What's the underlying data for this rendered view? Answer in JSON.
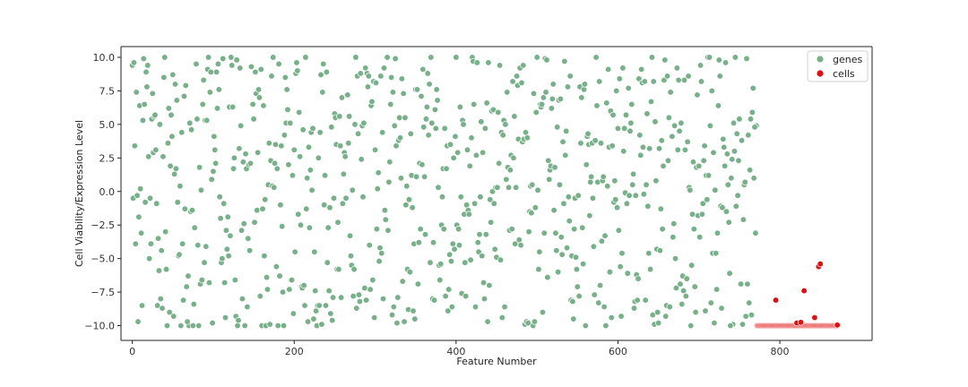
{
  "chart_data": {
    "type": "scatter",
    "title": "",
    "xlabel": "Feature Number",
    "ylabel": "Cell Viability/Expression Level",
    "xlim": [
      -14,
      914
    ],
    "ylim": [
      -11.1,
      10.8
    ],
    "xticks": [
      0,
      200,
      400,
      600,
      800
    ],
    "yticks": [
      -10.0,
      -7.5,
      -5.0,
      -2.5,
      0.0,
      2.5,
      5.0,
      7.5,
      10.0
    ],
    "xtick_labels": [
      "0",
      "200",
      "400",
      "600",
      "800"
    ],
    "ytick_labels": [
      "−10.0",
      "−7.5",
      "−5.0",
      "−2.5",
      "0.0",
      "2.5",
      "5.0",
      "7.5",
      "10.0"
    ],
    "grid": false,
    "legend_position": "top-right",
    "series": [
      {
        "name": "genes",
        "color": "#78b08a",
        "n_points": 772,
        "x_range": [
          0,
          771
        ],
        "y_range": [
          -10,
          10
        ],
        "distribution": "uniform",
        "seed": 12345,
        "points": [
          [
            0,
            9.4
          ],
          [
            1,
            -0.5
          ],
          [
            3,
            3.4
          ],
          [
            5,
            7.4
          ],
          [
            7,
            -9.7
          ],
          [
            8,
            -1.9
          ],
          [
            40,
            10.0
          ],
          [
            48,
            5.7
          ],
          [
            94,
            10.0
          ],
          [
            122,
            10.0
          ],
          [
            174,
            10.0
          ],
          [
            187,
            -10.0
          ],
          [
            214,
            10.0
          ],
          [
            276,
            10.0
          ],
          [
            369,
            10.0
          ],
          [
            420,
            10.0
          ],
          [
            500,
            10.0
          ],
          [
            573,
            10.0
          ],
          [
            642,
            10.0
          ],
          [
            711,
            10.0
          ],
          [
            745,
            10.0
          ],
          [
            60,
            -10.0
          ],
          [
            70,
            -10.0
          ],
          [
            75,
            -10.0
          ],
          [
            130,
            -10.0
          ],
          [
            160,
            -10.0
          ],
          [
            180,
            -10.0
          ],
          [
            228,
            -10.0
          ],
          [
            495,
            -10.0
          ],
          [
            560,
            -10.0
          ],
          [
            585,
            -10.0
          ],
          [
            645,
            -9.9
          ],
          [
            690,
            -10.0
          ],
          [
            742,
            -9.9
          ],
          [
            762,
            -8.3
          ],
          [
            766,
            5.9
          ],
          [
            768,
            1.0
          ],
          [
            770,
            -3.1
          ],
          [
            771,
            4.9
          ]
        ]
      },
      {
        "name": "cells",
        "color": "#e01010",
        "n_points": 100,
        "x_range": [
          772,
          871
        ],
        "baseline": -10.0,
        "points": [
          [
            795,
            -8.1
          ],
          [
            830,
            -7.4
          ],
          [
            843,
            -9.4
          ],
          [
            848,
            -5.6
          ],
          [
            850,
            -5.4
          ],
          [
            821,
            -9.8
          ],
          [
            826,
            -9.75
          ],
          [
            871,
            -9.95
          ]
        ]
      }
    ]
  }
}
